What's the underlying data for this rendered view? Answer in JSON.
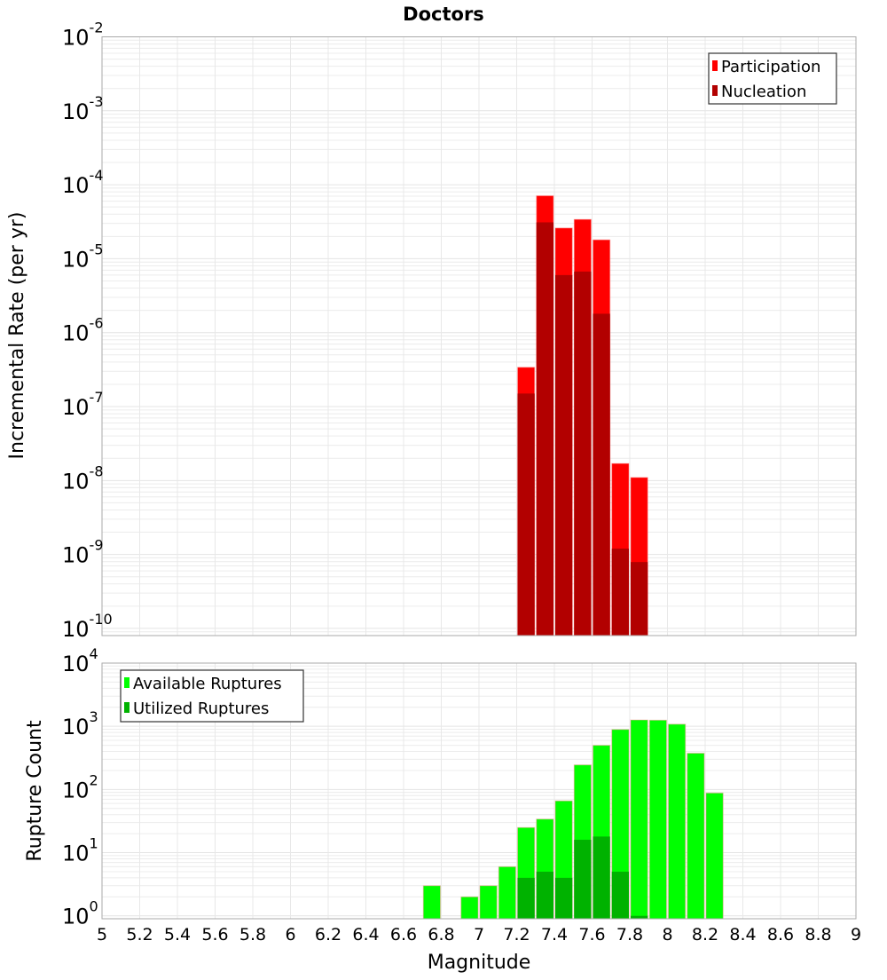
{
  "chart_data": [
    {
      "type": "bar",
      "title": "Doctors",
      "xlabel": "Magnitude",
      "ylabel": "Incremental Rate (per yr)",
      "yscale": "log",
      "xlim": [
        5,
        9
      ],
      "ylim": [
        8e-11,
        0.01
      ],
      "ytick_exponents": [
        -2,
        -3,
        -4,
        -5,
        -6,
        -7,
        -8,
        -9,
        -10
      ],
      "grid": true,
      "legend_position": "top-right",
      "bar_width": 0.1,
      "x": [
        7.25,
        7.35,
        7.45,
        7.55,
        7.65,
        7.75,
        7.85
      ],
      "series": [
        {
          "name": "Participation",
          "color": "#ff0000",
          "values": [
            3.4e-07,
            7.1e-05,
            2.6e-05,
            3.4e-05,
            1.8e-05,
            1.7e-08,
            1.1e-08
          ]
        },
        {
          "name": "Nucleation",
          "color": "#b20000",
          "values": [
            1.5e-07,
            3.1e-05,
            6e-06,
            6.7e-06,
            1.8e-06,
            1.2e-09,
            7.9e-10
          ]
        }
      ]
    },
    {
      "type": "bar",
      "xlabel": "Magnitude",
      "ylabel": "Rupture Count",
      "yscale": "log",
      "xlim": [
        5,
        9
      ],
      "ylim": [
        0.9,
        10000
      ],
      "ytick_exponents": [
        4,
        3,
        2,
        1,
        0
      ],
      "xticks": [
        "5",
        "5.2",
        "5.4",
        "5.6",
        "5.8",
        "6",
        "6.2",
        "6.4",
        "6.6",
        "6.8",
        "7",
        "7.2",
        "7.4",
        "7.6",
        "7.8",
        "8",
        "8.2",
        "8.4",
        "8.6",
        "8.8",
        "9"
      ],
      "grid": true,
      "legend_position": "top-left",
      "bar_width": 0.1,
      "x": [
        6.75,
        6.95,
        7.05,
        7.15,
        7.25,
        7.35,
        7.45,
        7.55,
        7.65,
        7.75,
        7.85,
        7.95,
        8.05,
        8.15,
        8.25
      ],
      "series": [
        {
          "name": "Available Ruptures",
          "color": "#00ff00",
          "values": [
            3,
            2,
            3,
            6,
            25,
            34,
            66,
            245,
            500,
            890,
            1260,
            1250,
            1080,
            375,
            88
          ]
        },
        {
          "name": "Utilized Ruptures",
          "color": "#00b200",
          "values": [
            0,
            0,
            0,
            0,
            4,
            5,
            4,
            16,
            18,
            5,
            1,
            0,
            0,
            0,
            0
          ]
        }
      ]
    }
  ]
}
